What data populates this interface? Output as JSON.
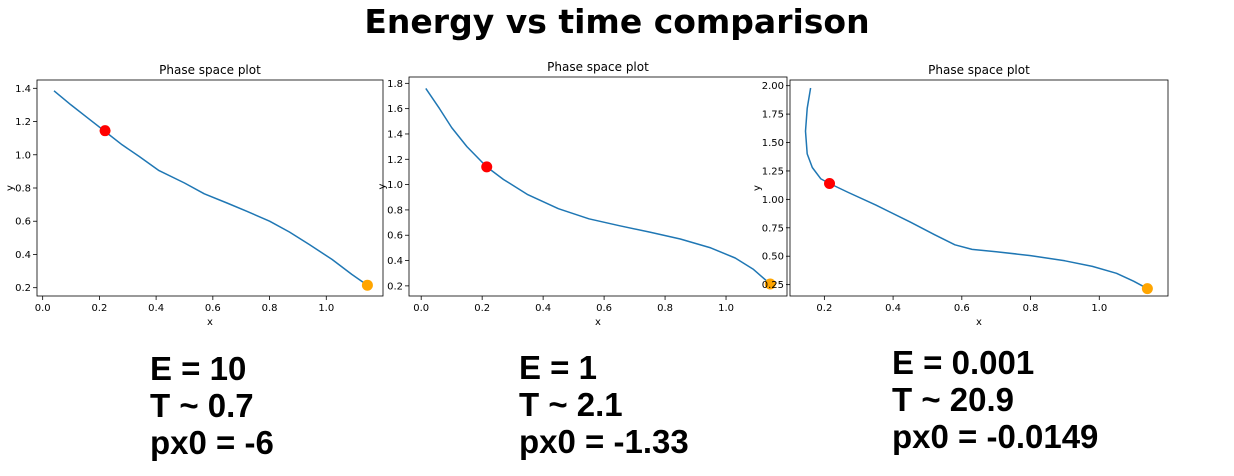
{
  "title": "Energy vs time comparison",
  "chart_data": [
    {
      "type": "line",
      "title": "Phase space plot",
      "xlabel": "x",
      "ylabel": "y",
      "xlim": [
        -0.02,
        1.2
      ],
      "ylim": [
        0.15,
        1.45
      ],
      "xticks": [
        0.0,
        0.2,
        0.4,
        0.6,
        0.8,
        1.0
      ],
      "xtick_labels": [
        "0.0",
        "0.2",
        "0.4",
        "0.6",
        "0.8",
        "1.0"
      ],
      "yticks": [
        0.2,
        0.4,
        0.6,
        0.8,
        1.0,
        1.2,
        1.4
      ],
      "ytick_labels": [
        "0.2",
        "0.4",
        "0.6",
        "0.8",
        "1.0",
        "1.2",
        "1.4"
      ],
      "grid": false,
      "line_color": "#1f77b4",
      "x": [
        0.04,
        0.1,
        0.16,
        0.22,
        0.28,
        0.34,
        0.41,
        0.5,
        0.57,
        0.65,
        0.72,
        0.8,
        0.87,
        0.94,
        1.02,
        1.09,
        1.145
      ],
      "y": [
        1.385,
        1.3,
        1.22,
        1.14,
        1.06,
        0.99,
        0.905,
        0.83,
        0.765,
        0.71,
        0.66,
        0.6,
        0.535,
        0.46,
        0.37,
        0.28,
        0.215
      ],
      "points": [
        {
          "x": 0.22,
          "y": 1.145,
          "color": "#ff0000"
        },
        {
          "x": 1.145,
          "y": 0.215,
          "color": "#ffa500"
        }
      ],
      "annotation": [
        "E = 10",
        "T ~ 0.7",
        "px0 = -6"
      ]
    },
    {
      "type": "line",
      "title": "Phase space plot",
      "xlabel": "x",
      "ylabel": "y",
      "xlim": [
        -0.04,
        1.2
      ],
      "ylim": [
        0.12,
        1.85
      ],
      "xticks": [
        0.0,
        0.2,
        0.4,
        0.6,
        0.8,
        1.0
      ],
      "xtick_labels": [
        "0.0",
        "0.2",
        "0.4",
        "0.6",
        "0.8",
        "1.0"
      ],
      "yticks": [
        0.2,
        0.4,
        0.6,
        0.8,
        1.0,
        1.2,
        1.4,
        1.6,
        1.8
      ],
      "ytick_labels": [
        "0.2",
        "0.4",
        "0.6",
        "0.8",
        "1.0",
        "1.2",
        "1.4",
        "1.6",
        "1.8"
      ],
      "grid": false,
      "line_color": "#1f77b4",
      "x": [
        0.015,
        0.06,
        0.1,
        0.15,
        0.215,
        0.27,
        0.35,
        0.45,
        0.55,
        0.65,
        0.75,
        0.85,
        0.95,
        1.03,
        1.09,
        1.145
      ],
      "y": [
        1.76,
        1.6,
        1.45,
        1.3,
        1.14,
        1.04,
        0.92,
        0.81,
        0.73,
        0.675,
        0.625,
        0.57,
        0.5,
        0.42,
        0.33,
        0.215
      ],
      "points": [
        {
          "x": 0.215,
          "y": 1.14,
          "color": "#ff0000"
        },
        {
          "x": 1.145,
          "y": 0.215,
          "color": "#ffa500"
        }
      ],
      "annotation": [
        "E = 1",
        "T ~ 2.1",
        "px0 = -1.33"
      ]
    },
    {
      "type": "line",
      "title": "Phase space plot",
      "xlabel": "x",
      "ylabel": "y",
      "xlim": [
        0.1,
        1.2
      ],
      "ylim": [
        0.15,
        2.05
      ],
      "xticks": [
        0.2,
        0.4,
        0.6,
        0.8,
        1.0
      ],
      "xtick_labels": [
        "0.2",
        "0.4",
        "0.6",
        "0.8",
        "1.0"
      ],
      "yticks": [
        0.25,
        0.5,
        0.75,
        1.0,
        1.25,
        1.5,
        1.75,
        2.0
      ],
      "ytick_labels": [
        "0.25",
        "0.50",
        "0.75",
        "1.00",
        "1.25",
        "1.50",
        "1.75",
        "2.00"
      ],
      "grid": false,
      "line_color": "#1f77b4",
      "x": [
        0.16,
        0.15,
        0.145,
        0.15,
        0.165,
        0.19,
        0.215,
        0.27,
        0.35,
        0.45,
        0.52,
        0.58,
        0.63,
        0.7,
        0.8,
        0.9,
        0.98,
        1.05,
        1.1,
        1.14
      ],
      "y": [
        1.98,
        1.8,
        1.6,
        1.4,
        1.28,
        1.18,
        1.14,
        1.06,
        0.95,
        0.8,
        0.69,
        0.6,
        0.56,
        0.54,
        0.505,
        0.46,
        0.41,
        0.35,
        0.28,
        0.215
      ],
      "points": [
        {
          "x": 0.215,
          "y": 1.14,
          "color": "#ff0000"
        },
        {
          "x": 1.14,
          "y": 0.215,
          "color": "#ffa500"
        }
      ],
      "annotation": [
        "E = 0.001",
        "T ~ 20.9",
        "px0 = -0.0149"
      ]
    }
  ]
}
